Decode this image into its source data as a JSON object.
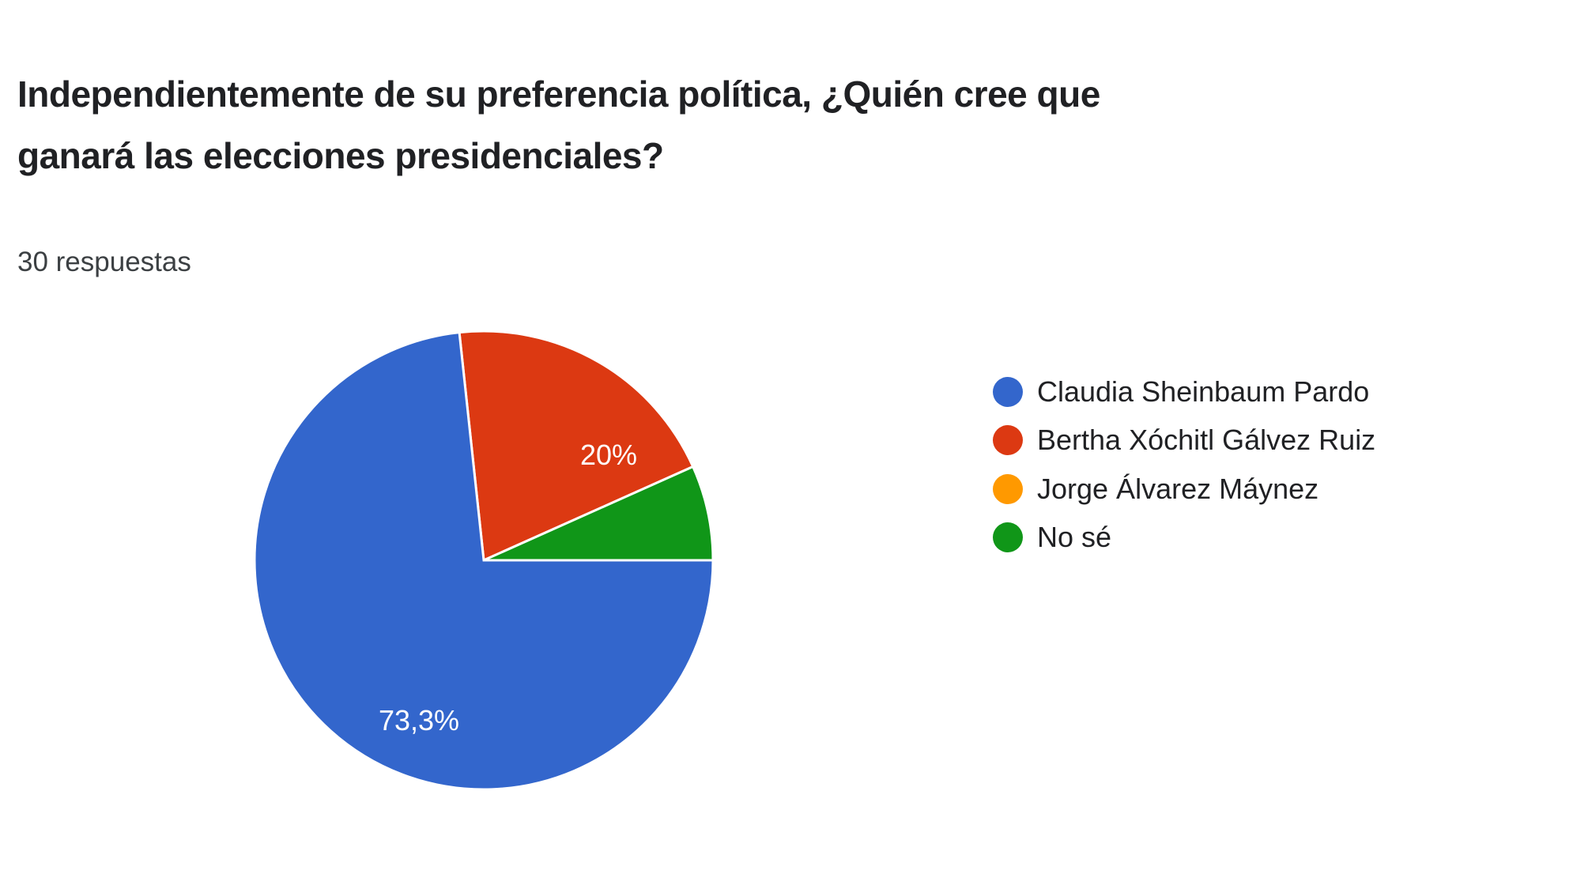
{
  "question": {
    "title_line1": "Independientemente de su preferencia política, ¿Quién cree que",
    "title_line2": "ganará las elecciones presidenciales?",
    "responses": "30 respuestas"
  },
  "legend": [
    {
      "label": "Claudia Sheinbaum Pardo",
      "color": "#3366cc"
    },
    {
      "label": "Bertha Xóchitl Gálvez Ruiz",
      "color": "#dc3912"
    },
    {
      "label": "Jorge Álvarez Máynez",
      "color": "#ff9900"
    },
    {
      "label": "No sé",
      "color": "#109618"
    }
  ],
  "slice_labels": {
    "claudia": "73,3%",
    "bertha": "20%"
  },
  "chart_data": {
    "type": "pie",
    "title": "Independientemente de su preferencia política, ¿Quién cree que ganará las elecciones presidenciales?",
    "subtitle": "30 respuestas",
    "categories": [
      "Claudia Sheinbaum Pardo",
      "Bertha Xóchitl Gálvez Ruiz",
      "Jorge Álvarez Máynez",
      "No sé"
    ],
    "values": [
      73.3,
      20,
      0,
      6.7
    ],
    "counts": [
      22,
      6,
      0,
      2
    ],
    "colors": [
      "#3366cc",
      "#dc3912",
      "#ff9900",
      "#109618"
    ],
    "data_labels": [
      "73,3%",
      "20%",
      "",
      ""
    ],
    "legend_position": "right"
  }
}
